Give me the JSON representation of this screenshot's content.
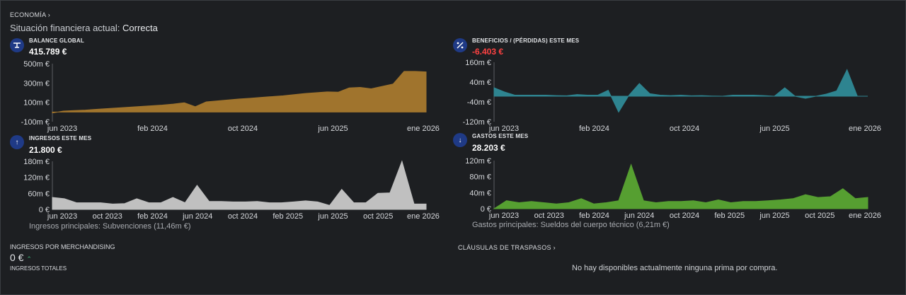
{
  "header": {
    "breadcrumb": "ECONOMÍA",
    "status_label": "Situación financiera actual:",
    "status_value": "Correcta"
  },
  "panels": {
    "balance": {
      "title": "BALANCE GLOBAL",
      "value": "415.789 €",
      "icon": "scale-icon",
      "color": "#a8792e"
    },
    "beneficios": {
      "title": "BENEFICIOS / (PÉRDIDAS) ESTE MES",
      "value": "-6.403 €",
      "icon": "percent-icon",
      "color": "#2f8a96"
    },
    "ingresos": {
      "title": "INGRESOS ESTE MES",
      "value": "21.800 €",
      "icon": "arrow-up-icon",
      "color": "#c9c9c9",
      "footer": "Ingresos principales: Subvenciones (11,46m €)"
    },
    "gastos": {
      "title": "GASTOS ESTE MES",
      "value": "28.203 €",
      "icon": "arrow-down-icon",
      "color": "#5aa632",
      "footer": "Gastos principales: Sueldos del cuerpo técnico (6,21m €)"
    }
  },
  "merchandising": {
    "title": "INGRESOS POR MERCHANDISING",
    "value": "0 €",
    "totals_label": "INGRESOS TOTALES"
  },
  "traspasos": {
    "link": "CLÁUSULAS DE TRASPASOS",
    "empty_message": "No hay disponibles actualmente ninguna prima por compra."
  },
  "chart_data": [
    {
      "id": "balance",
      "type": "area",
      "yticks": [
        "500m €",
        "300m €",
        "100m €",
        "-100m €"
      ],
      "ylim": [
        -100,
        500
      ],
      "xticks": [
        "jun 2023",
        "feb 2024",
        "oct 2024",
        "jun 2025",
        "ene 2026"
      ],
      "values": [
        -10,
        10,
        15,
        20,
        28,
        35,
        43,
        50,
        57,
        65,
        72,
        82,
        95,
        55,
        105,
        115,
        125,
        135,
        142,
        152,
        160,
        168,
        180,
        192,
        200,
        208,
        205,
        250,
        255,
        240,
        265,
        290,
        420,
        420,
        415
      ]
    },
    {
      "id": "beneficios",
      "type": "area",
      "yticks": [
        "160m €",
        "40m €",
        "-40m €",
        "-120m €"
      ],
      "ylim": [
        -120,
        160
      ],
      "xticks": [
        "jun 2023",
        "feb 2024",
        "oct 2024",
        "jun 2025",
        "ene 2026"
      ],
      "values": [
        40,
        20,
        5,
        5,
        5,
        5,
        3,
        2,
        8,
        5,
        5,
        28,
        -75,
        5,
        60,
        12,
        5,
        3,
        5,
        2,
        3,
        1,
        0,
        5,
        5,
        5,
        3,
        0,
        40,
        0,
        -10,
        0,
        10,
        25,
        125,
        0,
        0
      ]
    },
    {
      "id": "ingresos",
      "type": "area",
      "yticks": [
        "180m €",
        "120m €",
        "60m €",
        "0 €"
      ],
      "ylim": [
        0,
        180
      ],
      "xticks": [
        "jun 2023",
        "oct 2023",
        "feb 2024",
        "jun 2024",
        "oct 2024",
        "feb 2025",
        "jun 2025",
        "oct 2025",
        "ene 2026"
      ],
      "values": [
        45,
        40,
        25,
        25,
        25,
        20,
        22,
        40,
        25,
        25,
        45,
        25,
        90,
        30,
        30,
        28,
        28,
        30,
        25,
        25,
        28,
        32,
        28,
        15,
        75,
        25,
        25,
        60,
        62,
        180,
        20,
        20
      ]
    },
    {
      "id": "gastos",
      "type": "area",
      "yticks": [
        "120m €",
        "80m €",
        "40m €",
        "0 €"
      ],
      "ylim": [
        0,
        120
      ],
      "xticks": [
        "jun 2023",
        "oct 2023",
        "feb 2024",
        "jun 2024",
        "oct 2024",
        "feb 2025",
        "jun 2025",
        "oct 2025",
        "ene 2026"
      ],
      "values": [
        0,
        20,
        15,
        18,
        15,
        12,
        15,
        25,
        12,
        15,
        20,
        110,
        20,
        15,
        18,
        18,
        20,
        15,
        22,
        15,
        18,
        18,
        20,
        22,
        25,
        35,
        28,
        30,
        50,
        25,
        28
      ]
    }
  ]
}
